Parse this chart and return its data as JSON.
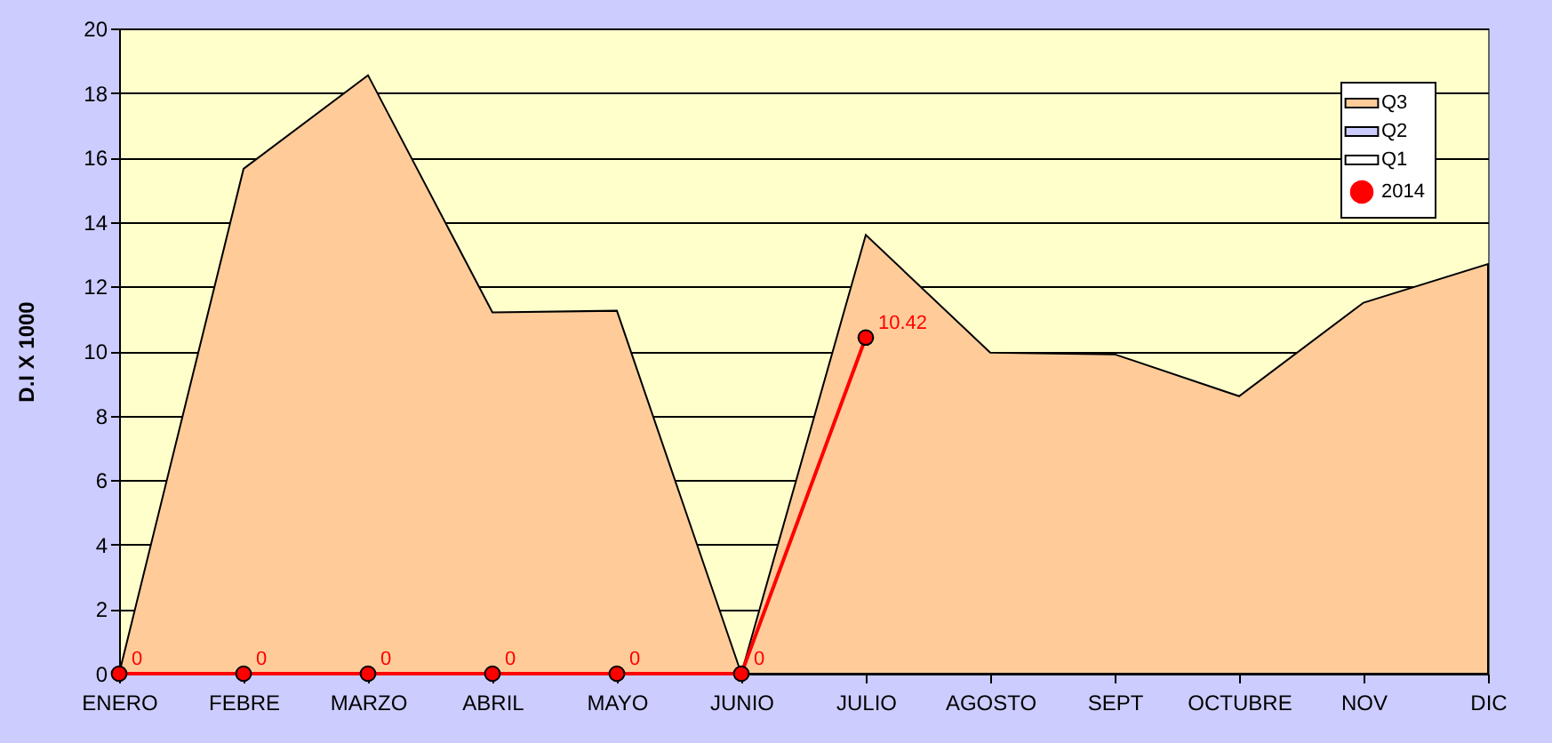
{
  "chart_data": {
    "type": "area",
    "ylabel": "D.I X 1000",
    "categories": [
      "ENERO",
      "FEBRE",
      "MARZO",
      "ABRIL",
      "MAYO",
      "JUNIO",
      "JULIO",
      "AGOSTO",
      "SEPT",
      "OCTUBRE",
      "NOV",
      "DIC"
    ],
    "series": [
      {
        "name": "Q3",
        "color": "#ffcc99",
        "values": [
          0,
          15.65,
          18.55,
          11.2,
          11.25,
          0,
          13.6,
          9.95,
          9.9,
          8.6,
          11.5,
          12.7
        ]
      },
      {
        "name": "Q2",
        "color": "#ccccff",
        "values": [
          null,
          null,
          null,
          null,
          null,
          null,
          null,
          null,
          null,
          null,
          null,
          null
        ]
      },
      {
        "name": "Q1",
        "color": "#ffffff",
        "values": [
          null,
          null,
          null,
          null,
          null,
          null,
          null,
          null,
          null,
          null,
          null,
          null
        ]
      },
      {
        "name": "2014",
        "type": "line",
        "marker": "circle",
        "color": "#ff0000",
        "values": [
          0,
          0,
          0,
          0,
          0,
          0,
          10.42,
          null,
          null,
          null,
          null,
          null
        ],
        "value_labels": [
          "0",
          "0",
          "0",
          "0",
          "0",
          "0",
          "10.42",
          null,
          null,
          null,
          null,
          null
        ]
      }
    ],
    "ylim": [
      0,
      20
    ],
    "yticks": [
      0,
      2,
      4,
      6,
      8,
      10,
      12,
      14,
      16,
      18,
      20
    ],
    "grid": "y",
    "legend": "top right"
  }
}
